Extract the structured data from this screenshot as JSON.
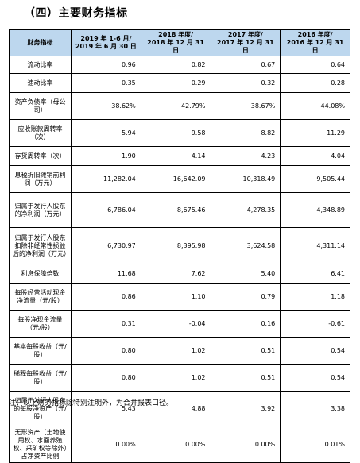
{
  "section_title": "（四）主要财务指标",
  "table": {
    "header": {
      "label": "财务指标",
      "periods": [
        "2019 年 1-6 月/\n2019 年 6 月 30 日",
        "2018 年度/\n2018 年 12 月 31 日",
        "2017 年度/\n2017 年 12 月 31 日",
        "2016 年度/\n2016 年 12 月 31 日"
      ]
    },
    "rows": [
      {
        "label": "流动比率",
        "values": [
          "0.96",
          "0.82",
          "0.67",
          "0.64"
        ]
      },
      {
        "label": "速动比率",
        "values": [
          "0.35",
          "0.29",
          "0.32",
          "0.28"
        ]
      },
      {
        "label": "资产负债率（母公司）",
        "values": [
          "38.62%",
          "42.79%",
          "38.67%",
          "44.08%"
        ]
      },
      {
        "label": "应收账款周转率（次）",
        "values": [
          "5.94",
          "9.58",
          "8.82",
          "11.29"
        ]
      },
      {
        "label": "存货周转率（次）",
        "values": [
          "1.90",
          "4.14",
          "4.23",
          "4.04"
        ]
      },
      {
        "label": "息税折旧摊销前利润（万元）",
        "values": [
          "11,282.04",
          "16,642.09",
          "10,318.49",
          "9,505.44"
        ]
      },
      {
        "label": "归属于发行人股东的净利润（万元）",
        "values": [
          "6,786.04",
          "8,675.46",
          "4,278.35",
          "4,348.89"
        ]
      },
      {
        "label": "归属于发行人股东扣除非经常性损益后的净利润（万元）",
        "values": [
          "6,730.97",
          "8,395.98",
          "3,624.58",
          "4,311.14"
        ]
      },
      {
        "label": "利息保障倍数",
        "values": [
          "11.68",
          "7.62",
          "5.40",
          "6.41"
        ]
      },
      {
        "label": "每股经营活动现金净流量（元/股）",
        "values": [
          "0.86",
          "1.10",
          "0.79",
          "1.18"
        ]
      },
      {
        "label": "每股净现金流量（元/股）",
        "values": [
          "0.31",
          "-0.04",
          "0.16",
          "-0.61"
        ]
      },
      {
        "label": "基本每股收益（元/股）",
        "values": [
          "0.80",
          "1.02",
          "0.51",
          "0.54"
        ]
      },
      {
        "label": "稀释每股收益（元/股）",
        "values": [
          "0.80",
          "1.02",
          "0.51",
          "0.54"
        ]
      },
      {
        "label": "归属于发行人股东的每股净资产（元/股）",
        "values": [
          "5.43",
          "4.88",
          "3.92",
          "3.38"
        ]
      },
      {
        "label": "无形资产（土地使用权、水面养殖权、采矿权等除外）占净资产比例",
        "values": [
          "0.00%",
          "0.00%",
          "0.00%",
          "0.01%"
        ]
      }
    ]
  },
  "footnote": "注：以上财务指标除特别注明外，为合并报表口径。",
  "colors": {
    "header_bg": "#bdd7ee",
    "border": "#000000"
  }
}
